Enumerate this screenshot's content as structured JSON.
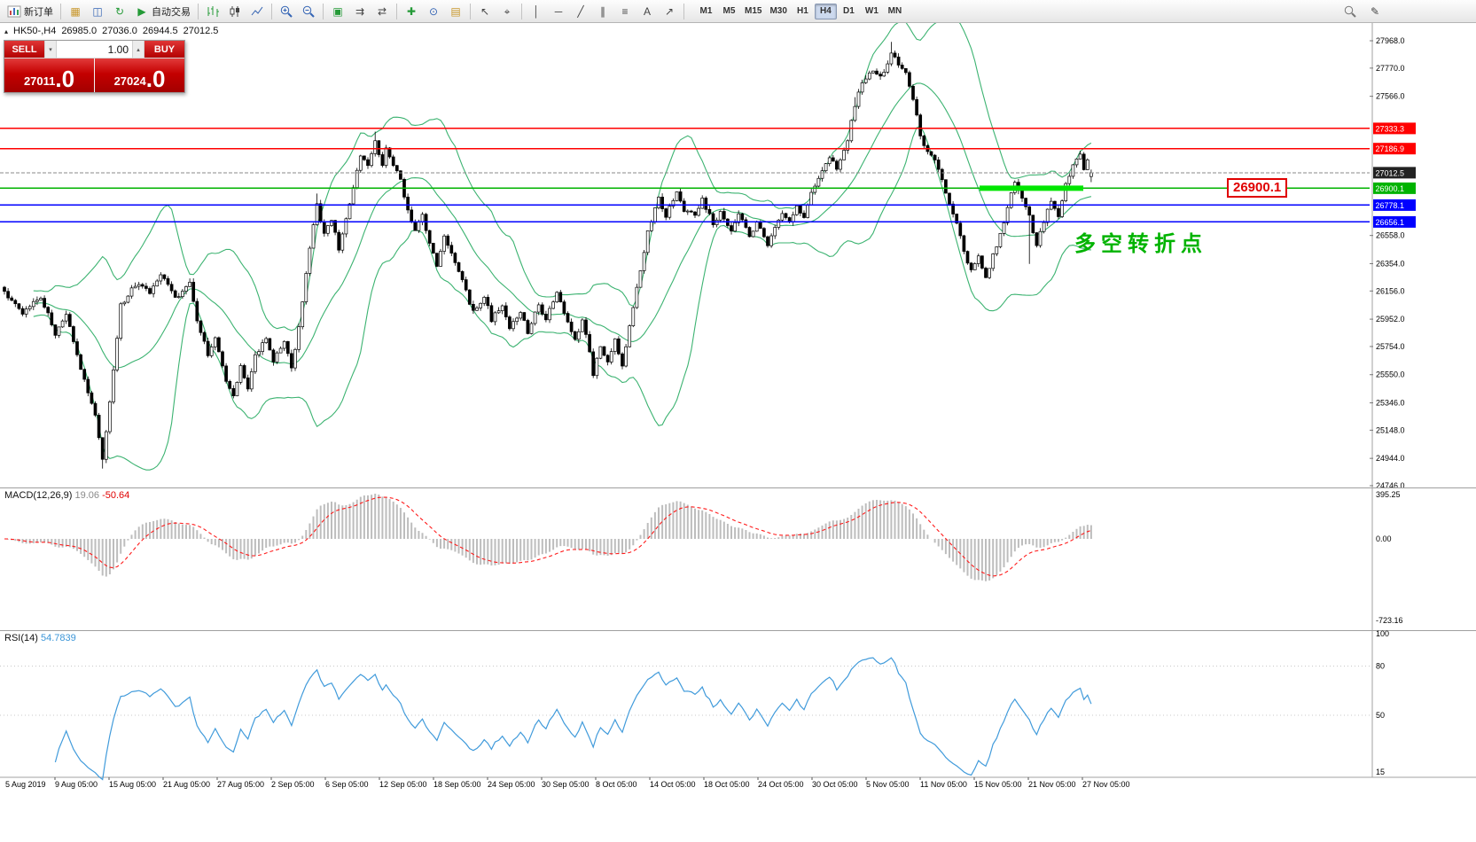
{
  "toolbar": {
    "new_order": "新订单",
    "autotrading": "自动交易",
    "timeframes": [
      "M1",
      "M5",
      "M15",
      "M30",
      "H1",
      "H4",
      "D1",
      "W1",
      "MN"
    ],
    "active_timeframe": "H4"
  },
  "icons": {
    "collapse": "▴",
    "play": "▶",
    "grid": "▦",
    "profiles": "◫",
    "refresh": "↻",
    "tile": "▣",
    "auto_scroll": "⇉",
    "shift": "⇄",
    "indicators": "✚",
    "periods": "⊙",
    "templates": "▤",
    "cursor": "↖",
    "crosshair": "⌖",
    "vline": "│",
    "hline": "─",
    "trendline": "╱",
    "channel": "∥",
    "fibonacci": "≡",
    "text_tool": "A",
    "arrows_tool": "↗",
    "pencil": "✎",
    "spin_up": "▴",
    "spin_down": "▾"
  },
  "chart_header": {
    "symbol": "HK50-,H4",
    "open": "26985.0",
    "high": "27036.0",
    "low": "26944.5",
    "close": "27012.5"
  },
  "trade_panel": {
    "sell_label": "SELL",
    "buy_label": "BUY",
    "volume": "1.00",
    "sell_price": "27011",
    "sell_price_frac": ".0",
    "buy_price": "27024",
    "buy_price_frac": ".0"
  },
  "annotation": "多空转折点",
  "callout_label": "26900.1",
  "macd_panel": {
    "label": "MACD(12,26,9)",
    "value": "19.06",
    "signal_value": "-50.64",
    "axis_labels": [
      "395.25",
      "0.00",
      "-723.16"
    ]
  },
  "rsi_panel": {
    "label": "RSI(14)",
    "value": "54.7839",
    "axis_labels": [
      "100",
      "80",
      "50",
      "15"
    ]
  },
  "chart_data": {
    "type": "candlestick",
    "symbol": "HK50-",
    "timeframe": "H4",
    "current_bar": {
      "open": 26985.0,
      "high": 27036.0,
      "low": 26944.5,
      "close": 27012.5
    },
    "bid_price": 27012.5,
    "price_axis": {
      "top_price": 27968.0,
      "bottom_price": 24746.0,
      "labels": [
        27968.0,
        27770.0,
        27566.0,
        26558.0,
        26354.0,
        26156.0,
        25952.0,
        25754.0,
        25550.0,
        25346.0,
        25148.0,
        24944.0,
        24746.0
      ]
    },
    "levels": [
      {
        "price": 27333.3,
        "color": "#ff0000",
        "style": "solid"
      },
      {
        "price": 27186.9,
        "color": "#ff0000",
        "style": "solid"
      },
      {
        "price": 26900.1,
        "color": "#00b300",
        "style": "solid",
        "highlight": true
      },
      {
        "price": 26778.1,
        "color": "#0000ff",
        "style": "solid"
      },
      {
        "price": 26656.1,
        "color": "#0000ff",
        "style": "solid"
      }
    ],
    "candle_count": 300,
    "close_anchors": [
      [
        0,
        26150
      ],
      [
        5,
        26000
      ],
      [
        10,
        26120
      ],
      [
        14,
        25850
      ],
      [
        17,
        25980
      ],
      [
        21,
        25600
      ],
      [
        25,
        25250
      ],
      [
        27,
        24950
      ],
      [
        29,
        25350
      ],
      [
        32,
        26050
      ],
      [
        36,
        26200
      ],
      [
        40,
        26150
      ],
      [
        43,
        26280
      ],
      [
        47,
        26100
      ],
      [
        51,
        26220
      ],
      [
        53,
        25950
      ],
      [
        56,
        25700
      ],
      [
        58,
        25820
      ],
      [
        61,
        25500
      ],
      [
        63,
        25400
      ],
      [
        65,
        25620
      ],
      [
        67,
        25450
      ],
      [
        69,
        25680
      ],
      [
        72,
        25820
      ],
      [
        74,
        25650
      ],
      [
        77,
        25780
      ],
      [
        79,
        25600
      ],
      [
        81,
        25880
      ],
      [
        83,
        26300
      ],
      [
        86,
        26780
      ],
      [
        88,
        26560
      ],
      [
        90,
        26680
      ],
      [
        92,
        26450
      ],
      [
        94,
        26680
      ],
      [
        96,
        26900
      ],
      [
        98,
        27150
      ],
      [
        100,
        27050
      ],
      [
        102,
        27240
      ],
      [
        104,
        27080
      ],
      [
        105,
        27190
      ],
      [
        107,
        27080
      ],
      [
        109,
        26950
      ],
      [
        111,
        26750
      ],
      [
        113,
        26600
      ],
      [
        115,
        26720
      ],
      [
        117,
        26500
      ],
      [
        119,
        26350
      ],
      [
        121,
        26560
      ],
      [
        123,
        26440
      ],
      [
        125,
        26300
      ],
      [
        127,
        26150
      ],
      [
        129,
        26000
      ],
      [
        132,
        26120
      ],
      [
        134,
        25950
      ],
      [
        137,
        26060
      ],
      [
        139,
        25900
      ],
      [
        142,
        26010
      ],
      [
        144,
        25850
      ],
      [
        147,
        26060
      ],
      [
        149,
        25950
      ],
      [
        152,
        26160
      ],
      [
        154,
        26000
      ],
      [
        157,
        25800
      ],
      [
        159,
        25950
      ],
      [
        161,
        25700
      ],
      [
        162,
        25550
      ],
      [
        164,
        25760
      ],
      [
        166,
        25640
      ],
      [
        168,
        25800
      ],
      [
        170,
        25600
      ],
      [
        172,
        25900
      ],
      [
        175,
        26300
      ],
      [
        177,
        26600
      ],
      [
        180,
        26820
      ],
      [
        182,
        26700
      ],
      [
        185,
        26860
      ],
      [
        187,
        26740
      ],
      [
        190,
        26700
      ],
      [
        192,
        26820
      ],
      [
        195,
        26650
      ],
      [
        197,
        26720
      ],
      [
        200,
        26600
      ],
      [
        202,
        26720
      ],
      [
        205,
        26550
      ],
      [
        207,
        26660
      ],
      [
        210,
        26500
      ],
      [
        212,
        26620
      ],
      [
        214,
        26720
      ],
      [
        216,
        26650
      ],
      [
        218,
        26770
      ],
      [
        220,
        26700
      ],
      [
        222,
        26870
      ],
      [
        224,
        26960
      ],
      [
        227,
        27120
      ],
      [
        229,
        27050
      ],
      [
        232,
        27260
      ],
      [
        234,
        27500
      ],
      [
        236,
        27660
      ],
      [
        239,
        27760
      ],
      [
        241,
        27700
      ],
      [
        244,
        27870
      ],
      [
        246,
        27800
      ],
      [
        248,
        27740
      ],
      [
        250,
        27550
      ],
      [
        252,
        27280
      ],
      [
        254,
        27150
      ],
      [
        256,
        27100
      ],
      [
        258,
        26950
      ],
      [
        260,
        26800
      ],
      [
        262,
        26640
      ],
      [
        264,
        26440
      ],
      [
        266,
        26300
      ],
      [
        268,
        26420
      ],
      [
        270,
        26240
      ],
      [
        272,
        26420
      ],
      [
        274,
        26560
      ],
      [
        276,
        26760
      ],
      [
        278,
        26960
      ],
      [
        280,
        26840
      ],
      [
        282,
        26690
      ],
      [
        284,
        26480
      ],
      [
        286,
        26660
      ],
      [
        288,
        26820
      ],
      [
        290,
        26700
      ],
      [
        292,
        26920
      ],
      [
        294,
        27060
      ],
      [
        296,
        27160
      ],
      [
        297,
        27040
      ],
      [
        298,
        27090
      ],
      [
        299,
        27012.5
      ]
    ],
    "wick_overrides": [
      [
        27,
        "low",
        24870
      ],
      [
        86,
        "high",
        26862
      ],
      [
        102,
        "high",
        27310
      ],
      [
        234,
        "high",
        27560
      ],
      [
        244,
        "high",
        27960
      ],
      [
        282,
        "low",
        26352
      ]
    ],
    "indicators": {
      "bollinger": {
        "period": 20,
        "deviation": 2,
        "color": "#3cb371"
      },
      "macd": {
        "fast": 12,
        "slow": 26,
        "signal": 9,
        "value": 19.06,
        "signal_value": -50.64,
        "hist_color": "#bdbdbd",
        "signal_color": "#ff1a1a",
        "axis_max": 395.25,
        "axis_min": -723.16
      },
      "rsi": {
        "period": 14,
        "value": 54.7839,
        "color": "#419bdb",
        "levels": [
          80,
          50
        ]
      }
    },
    "time_axis": [
      "5 Aug 2019",
      "9 Aug 05:00",
      "15 Aug 05:00",
      "21 Aug 05:00",
      "27 Aug 05:00",
      "2 Sep 05:00",
      "6 Sep 05:00",
      "12 Sep 05:00",
      "18 Sep 05:00",
      "24 Sep 05:00",
      "30 Sep 05:00",
      "8 Oct 05:00",
      "14 Oct 05:00",
      "18 Oct 05:00",
      "24 Oct 05:00",
      "30 Oct 05:00",
      "5 Nov 05:00",
      "11 Nov 05:00",
      "15 Nov 05:00",
      "21 Nov 05:00",
      "27 Nov 05:00"
    ]
  }
}
